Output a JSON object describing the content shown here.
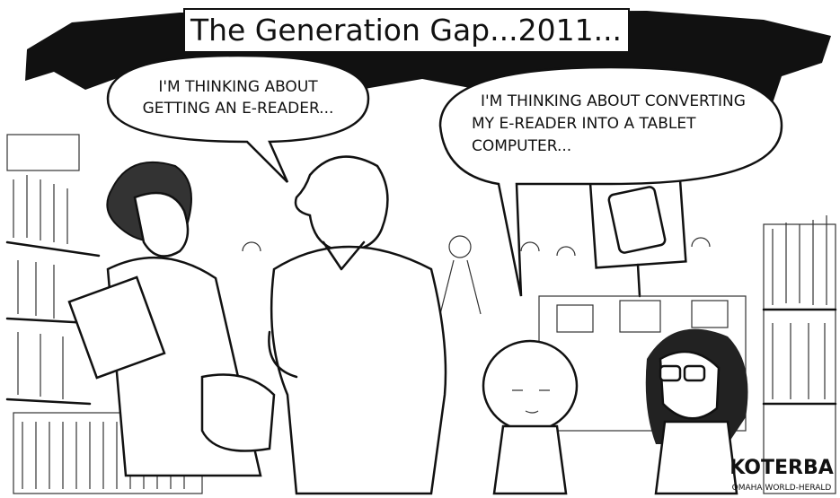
{
  "title": "The Generation Gap...2011...",
  "bubbles": [
    {
      "lines": [
        "I'M THINKING ABOUT",
        "GETTING AN E-READER..."
      ]
    },
    {
      "lines": [
        "I'M THINKING ABOUT CONVERTING",
        "MY E-READER INTO A TABLET",
        "COMPUTER..."
      ]
    }
  ],
  "signature": {
    "artist": "KOTERBA",
    "paper": "OMAHA WORLD-HERALD"
  }
}
